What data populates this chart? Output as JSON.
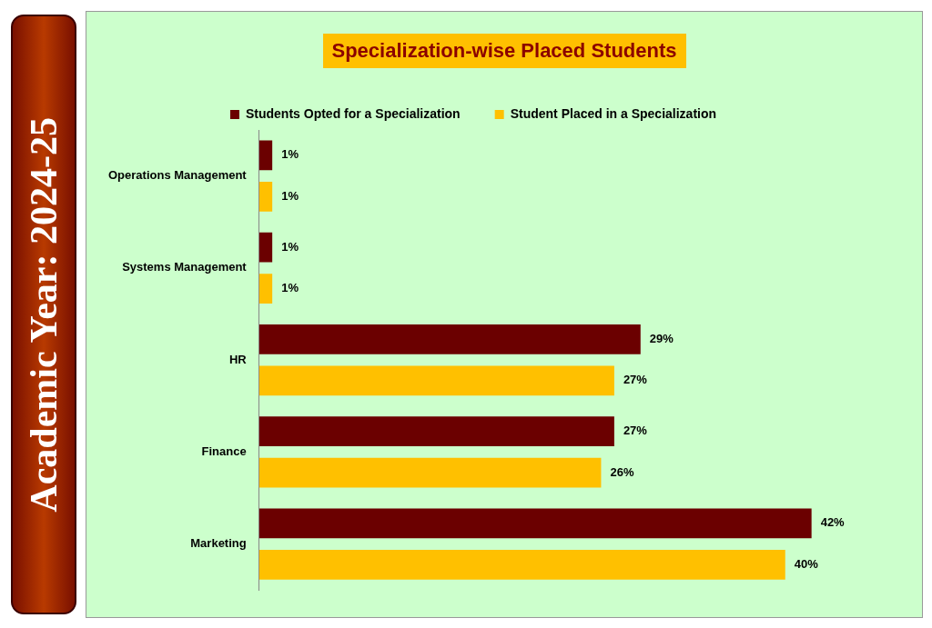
{
  "chart_data": {
    "type": "bar",
    "title": "Specialization-wise Placed Students",
    "annotations": [
      "Academic Year: 2024-25"
    ],
    "orientation": "horizontal",
    "legend": "top",
    "grid": false,
    "categories": [
      "Operations Management",
      "Systems Management",
      "HR",
      "Finance",
      "Marketing"
    ],
    "series": [
      {
        "name": "Students Opted for a Specialization",
        "color": "#6b0000",
        "values": [
          1,
          1,
          29,
          27,
          42
        ],
        "value_labels": [
          "1%",
          "1%",
          "29%",
          "27%",
          "42%"
        ]
      },
      {
        "name": "Student Placed in a Specialization",
        "color": "#ffc000",
        "values": [
          1,
          1,
          27,
          26,
          40
        ],
        "value_labels": [
          "1%",
          "1%",
          "27%",
          "26%",
          "40%"
        ]
      }
    ]
  }
}
